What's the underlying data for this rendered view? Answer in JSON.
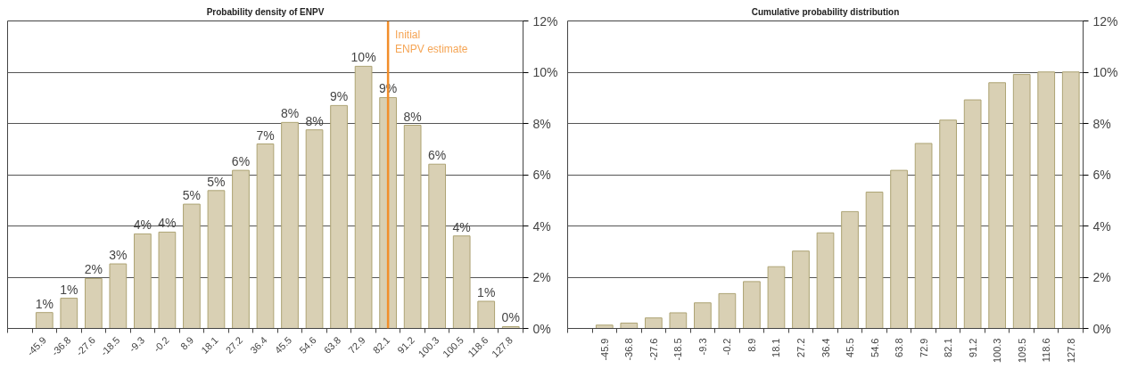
{
  "chart_data": [
    {
      "type": "bar",
      "title": "Probability density of ENPV",
      "color": "#d9d0b4",
      "categories": [
        null,
        "-45.9",
        "-36.8",
        "-27.6",
        "-18.5",
        "-9.3",
        "-0.2",
        "8.9",
        "18.1",
        "27.2",
        "36.4",
        "45.5",
        "54.6",
        "63.8",
        "72.9",
        "82.1",
        "91.2",
        "100.3",
        "100.5",
        "118.6",
        "127.8"
      ],
      "values": [
        null,
        0.62,
        1.18,
        1.95,
        2.52,
        3.69,
        3.76,
        4.85,
        5.38,
        6.17,
        7.2,
        8.04,
        7.75,
        8.7,
        10.23,
        9.01,
        7.93,
        6.41,
        3.61,
        1.06,
        0.07
      ],
      "value_labels": [
        null,
        "1%",
        "1%",
        "2%",
        "3%",
        "4%",
        "4%",
        "5%",
        "5%",
        "6%",
        "7%",
        "8%",
        "8%",
        "9%",
        "10%",
        "9%",
        "8%",
        "6%",
        "4%",
        "1%",
        "0%"
      ],
      "ylim": [
        0,
        12
      ],
      "yticks": [
        {
          "value": 0,
          "label": "0%"
        },
        {
          "value": 2,
          "label": "2%"
        },
        {
          "value": 4,
          "label": "4%"
        },
        {
          "value": 6,
          "label": "6%"
        },
        {
          "value": 8,
          "label": "8%"
        },
        {
          "value": 10,
          "label": "10%"
        },
        {
          "value": 12,
          "label": "12%"
        }
      ],
      "grid": "y",
      "ref_lines": [
        {
          "axis": "x",
          "value": "82.1",
          "label": "Initial\nENPV estimate",
          "color": "#f28e2b"
        }
      ]
    },
    {
      "type": "bar",
      "title": "Cumulative probability distribution",
      "color": "#d9d0b4",
      "categories": [
        null,
        "-45.9",
        "-36.8",
        "-27.6",
        "-18.5",
        "-9.3",
        "-0.2",
        "8.9",
        "18.1",
        "27.2",
        "36.4",
        "45.5",
        "54.6",
        "63.8",
        "72.9",
        "82.1",
        "91.2",
        "100.3",
        "109.5",
        "118.6",
        "127.8"
      ],
      "values": [
        null,
        0.13,
        0.21,
        0.41,
        0.61,
        1.0,
        1.36,
        1.83,
        2.41,
        3.02,
        3.73,
        4.56,
        5.32,
        6.17,
        7.22,
        8.13,
        8.92,
        9.59,
        9.91,
        10.01,
        10.01
      ],
      "ylim": [
        0,
        12
      ],
      "yticks": [
        {
          "value": 0,
          "label": "0%"
        },
        {
          "value": 2,
          "label": "2%"
        },
        {
          "value": 4,
          "label": "4%"
        },
        {
          "value": 6,
          "label": "6%"
        },
        {
          "value": 8,
          "label": "8%"
        },
        {
          "value": 10,
          "label": "10%"
        },
        {
          "value": 12,
          "label": "12%"
        }
      ],
      "grid": "y"
    }
  ]
}
